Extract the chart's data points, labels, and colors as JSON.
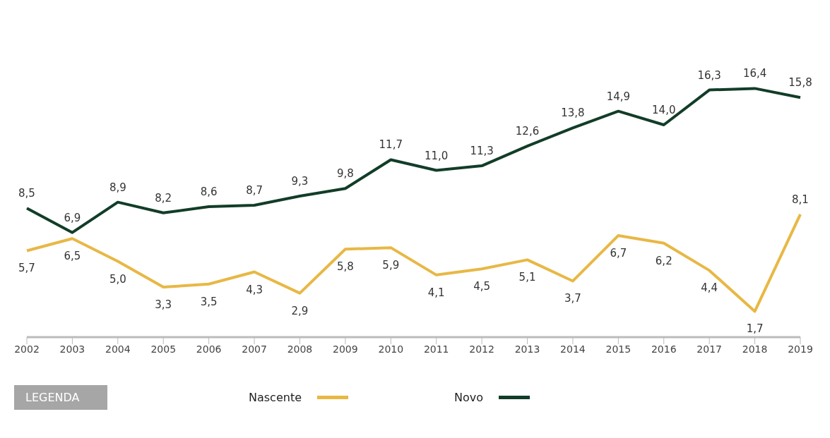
{
  "chart_data": {
    "type": "line",
    "categories": [
      "2002",
      "2003",
      "2004",
      "2005",
      "2006",
      "2007",
      "2008",
      "2009",
      "2010",
      "2011",
      "2012",
      "2013",
      "2014",
      "2015",
      "2016",
      "2017",
      "2018",
      "2019"
    ],
    "series": [
      {
        "name": "Nascente",
        "color": "#e8b845",
        "values": [
          5.7,
          6.5,
          5.0,
          3.3,
          3.5,
          4.3,
          2.9,
          5.8,
          5.9,
          4.1,
          4.5,
          5.1,
          3.7,
          6.7,
          6.2,
          4.4,
          1.7,
          8.1
        ],
        "value_labels": [
          "5,7",
          "6,5",
          "5,0",
          "3,3",
          "3,5",
          "4,3",
          "2,9",
          "5,8",
          "5,9",
          "4,1",
          "4,5",
          "5,1",
          "3,7",
          "6,7",
          "6,2",
          "4,4",
          "1,7",
          "8,1"
        ]
      },
      {
        "name": "Novo",
        "color": "#123d28",
        "values": [
          8.5,
          6.9,
          8.9,
          8.2,
          8.6,
          8.7,
          9.3,
          9.8,
          11.7,
          11.0,
          11.3,
          12.6,
          13.8,
          14.9,
          14.0,
          16.3,
          16.4,
          15.8
        ],
        "value_labels": [
          "8,5",
          "6,9",
          "8,9",
          "8,2",
          "8,6",
          "8,7",
          "9,3",
          "9,8",
          "11,7",
          "11,0",
          "11,3",
          "12,6",
          "13,8",
          "14,9",
          "14,0",
          "16,3",
          "16,4",
          "15,8"
        ]
      }
    ],
    "grid": false,
    "legend": "bottom",
    "legend_title": "LEGENDA",
    "marker": "none",
    "line_style": "solid"
  }
}
